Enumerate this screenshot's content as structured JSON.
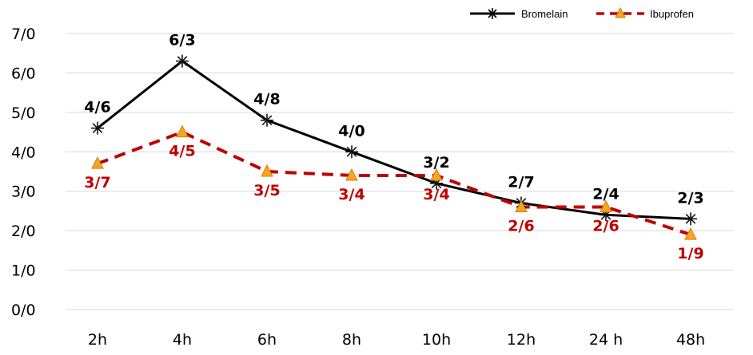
{
  "chart_data": {
    "type": "line",
    "categories": [
      "2h",
      "4h",
      "6h",
      "8h",
      "10h",
      "12h",
      "24  h",
      "48h"
    ],
    "y_ticks": [
      "0/0",
      "1/0",
      "2/0",
      "3/0",
      "4/0",
      "5/0",
      "6/0",
      "7/0"
    ],
    "ylim": [
      0,
      7
    ],
    "grid": true,
    "legend_position": "top-right",
    "series": [
      {
        "name": "Bromelain",
        "values": [
          4.6,
          6.3,
          4.8,
          4.0,
          3.2,
          2.7,
          2.4,
          2.3
        ],
        "labels": [
          "4/6",
          "6/3",
          "4/8",
          "4/0",
          "3/2",
          "2/7",
          "2/4",
          "2/3"
        ],
        "color": "#000000",
        "marker": "asterisk",
        "line_style": "solid"
      },
      {
        "name": "Ibuprofen",
        "values": [
          3.7,
          4.5,
          3.5,
          3.4,
          3.4,
          2.6,
          2.6,
          1.9
        ],
        "labels": [
          "3/7",
          "4/5",
          "3/5",
          "3/4",
          "3/4",
          "2/6",
          "2/6",
          "1/9"
        ],
        "color": "#c00000",
        "marker_color": "#f5a623",
        "marker": "triangle",
        "line_style": "dashed"
      }
    ]
  }
}
